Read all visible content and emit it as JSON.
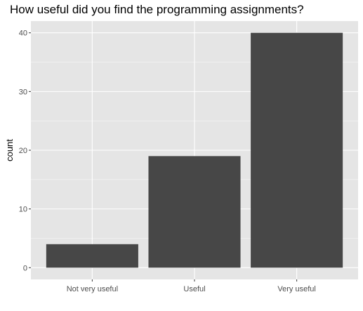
{
  "chart_data": {
    "type": "bar",
    "title": "How useful did you find the programming assignments?",
    "xlabel": "",
    "ylabel": "count",
    "categories": [
      "Not very useful",
      "Useful",
      "Very useful"
    ],
    "values": [
      4,
      19,
      40
    ],
    "ylim": [
      -2,
      42
    ],
    "yticks": [
      0,
      10,
      20,
      30,
      40
    ],
    "grid": true,
    "colors": {
      "bar": "#474747",
      "panel": "#e5e5e5",
      "grid_major": "#ffffff",
      "tick_text": "#4d4d4d"
    }
  }
}
